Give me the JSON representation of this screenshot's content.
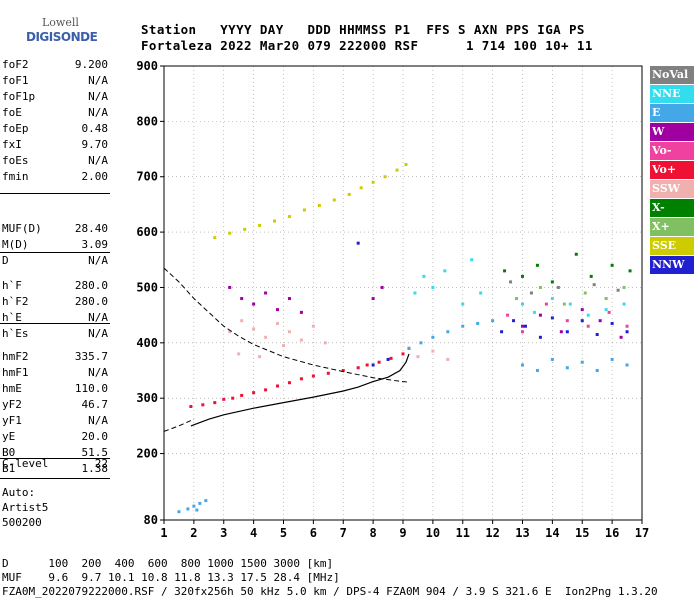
{
  "logo": {
    "top": "Lowell",
    "bottom": "DIGISONDE"
  },
  "header": {
    "line1": "Station   YYYY DAY   DDD HHMMSS P1  FFS S AXN PPS IGA PS",
    "line2": "Fortaleza 2022 Mar20 079 222000 RSF      1 714 100 10+ 11"
  },
  "params_group1": [
    {
      "label": "foF2",
      "value": "9.200"
    },
    {
      "label": "foF1",
      "value": "N/A"
    },
    {
      "label": "foF1p",
      "value": "N/A"
    },
    {
      "label": "foE",
      "value": "N/A"
    },
    {
      "label": "foEp",
      "value": "0.48"
    },
    {
      "label": "fxI",
      "value": "9.70"
    },
    {
      "label": "foEs",
      "value": "N/A"
    },
    {
      "label": "fmin",
      "value": "2.00"
    }
  ],
  "params_group2": [
    {
      "label": "MUF(D)",
      "value": "28.40"
    },
    {
      "label": "M(D)",
      "value": "3.09"
    },
    {
      "label": "D",
      "value": "N/A"
    }
  ],
  "params_group3": [
    {
      "label": "h`F",
      "value": "280.0"
    },
    {
      "label": "h`F2",
      "value": "280.0"
    },
    {
      "label": "h`E",
      "value": "N/A"
    },
    {
      "label": "h`Es",
      "value": "N/A"
    }
  ],
  "params_group4": [
    {
      "label": "hmF2",
      "value": "335.7"
    },
    {
      "label": "hmF1",
      "value": "N/A"
    },
    {
      "label": "hmE",
      "value": "110.0"
    },
    {
      "label": "yF2",
      "value": "46.7"
    },
    {
      "label": "yF1",
      "value": "N/A"
    },
    {
      "label": "yE",
      "value": "20.0"
    },
    {
      "label": "B0",
      "value": "51.5"
    },
    {
      "label": "B1",
      "value": "1.38"
    }
  ],
  "params_group5": [
    {
      "label": "C-level",
      "value": "22"
    }
  ],
  "auto": {
    "line1": "Auto:",
    "line2": "Artist5",
    "line3": "500200"
  },
  "legend": [
    {
      "label": "NoVal",
      "color": "#808080"
    },
    {
      "label": "NNE",
      "color": "#33ddee"
    },
    {
      "label": "E",
      "color": "#44a8e8"
    },
    {
      "label": "W",
      "color": "#a000a0"
    },
    {
      "label": "Vo-",
      "color": "#f040a0"
    },
    {
      "label": "Vo+",
      "color": "#ee1133"
    },
    {
      "label": "SSW",
      "color": "#f0b0b0"
    },
    {
      "label": "X-",
      "color": "#008000"
    },
    {
      "label": "X+",
      "color": "#80c060"
    },
    {
      "label": "SSE",
      "color": "#cccc00"
    },
    {
      "label": "NNW",
      "color": "#2020d0"
    }
  ],
  "footer": {
    "line1": "D      100  200  400  600  800 1000 1500 3000 [km]",
    "line2": "MUF    9.6  9.7 10.1 10.8 11.8 13.3 17.5 28.4 [MHz]",
    "line3": "FZA0M_2022079222000.RSF / 320fx256h 50 kHz 5.0 km / DPS-4 FZA0M 904 / 3.9 S 321.6 E  Ion2Png 1.3.20"
  },
  "chart_data": {
    "type": "scatter",
    "title": "",
    "xlabel": "",
    "ylabel": "",
    "xlim": [
      1,
      17
    ],
    "ylim": [
      80,
      900
    ],
    "x_ticks": [
      1,
      2,
      3,
      4,
      5,
      6,
      7,
      8,
      9,
      10,
      11,
      12,
      13,
      14,
      15,
      16,
      17
    ],
    "y_ticks": [
      80,
      200,
      300,
      400,
      500,
      600,
      700,
      800,
      900
    ],
    "grid": "dotted",
    "legend_placement": "right",
    "series": [
      {
        "name": "Vo+",
        "color": "#ee1133",
        "points": [
          [
            1.9,
            285
          ],
          [
            2.3,
            288
          ],
          [
            2.7,
            292
          ],
          [
            3.0,
            298
          ],
          [
            3.3,
            300
          ],
          [
            3.6,
            305
          ],
          [
            4.0,
            310
          ],
          [
            4.4,
            315
          ],
          [
            4.8,
            322
          ],
          [
            5.2,
            328
          ],
          [
            5.6,
            335
          ],
          [
            6.0,
            340
          ],
          [
            6.5,
            345
          ],
          [
            7.0,
            350
          ],
          [
            7.5,
            355
          ],
          [
            7.8,
            360
          ],
          [
            8.2,
            365
          ],
          [
            8.6,
            372
          ],
          [
            9.0,
            380
          ],
          [
            9.2,
            390
          ]
        ]
      },
      {
        "name": "SSW",
        "color": "#f0b0b0",
        "points": [
          [
            3.2,
            420
          ],
          [
            3.6,
            440
          ],
          [
            4.0,
            425
          ],
          [
            4.4,
            410
          ],
          [
            4.8,
            435
          ],
          [
            5.2,
            420
          ],
          [
            5.6,
            405
          ],
          [
            6.0,
            430
          ],
          [
            6.4,
            400
          ],
          [
            3.5,
            380
          ],
          [
            4.2,
            375
          ],
          [
            5.0,
            395
          ],
          [
            9.5,
            375
          ],
          [
            10.0,
            385
          ],
          [
            10.5,
            370
          ]
        ]
      },
      {
        "name": "W",
        "color": "#a000a0",
        "points": [
          [
            3.2,
            500
          ],
          [
            3.6,
            480
          ],
          [
            4.0,
            470
          ],
          [
            4.4,
            490
          ],
          [
            4.8,
            460
          ],
          [
            5.2,
            480
          ],
          [
            5.6,
            455
          ],
          [
            8.0,
            480
          ],
          [
            8.3,
            500
          ],
          [
            13.0,
            430
          ],
          [
            13.6,
            450
          ],
          [
            14.3,
            420
          ],
          [
            15.0,
            460
          ],
          [
            15.6,
            440
          ],
          [
            16.3,
            410
          ]
        ]
      },
      {
        "name": "SSE",
        "color": "#cccc00",
        "points": [
          [
            2.7,
            590
          ],
          [
            3.2,
            598
          ],
          [
            3.7,
            605
          ],
          [
            4.2,
            612
          ],
          [
            4.7,
            620
          ],
          [
            5.2,
            628
          ],
          [
            5.7,
            640
          ],
          [
            6.2,
            648
          ],
          [
            6.7,
            658
          ],
          [
            7.2,
            668
          ],
          [
            7.6,
            680
          ],
          [
            8.0,
            690
          ],
          [
            8.4,
            700
          ],
          [
            8.8,
            712
          ],
          [
            9.1,
            722
          ]
        ]
      },
      {
        "name": "E",
        "color": "#44a8e8",
        "points": [
          [
            9.2,
            390
          ],
          [
            9.6,
            400
          ],
          [
            10.0,
            410
          ],
          [
            10.5,
            420
          ],
          [
            11.0,
            430
          ],
          [
            11.5,
            435
          ],
          [
            12.0,
            440
          ],
          [
            13.0,
            360
          ],
          [
            13.5,
            350
          ],
          [
            14.0,
            370
          ],
          [
            14.5,
            355
          ],
          [
            15.0,
            365
          ],
          [
            15.5,
            350
          ],
          [
            16.0,
            370
          ],
          [
            16.5,
            360
          ]
        ]
      },
      {
        "name": "NNE",
        "color": "#33ddee",
        "points": [
          [
            9.4,
            490
          ],
          [
            9.7,
            520
          ],
          [
            10.0,
            500
          ],
          [
            10.4,
            530
          ],
          [
            11.0,
            470
          ],
          [
            11.3,
            550
          ],
          [
            11.6,
            490
          ],
          [
            13.0,
            470
          ],
          [
            13.4,
            455
          ],
          [
            14.0,
            480
          ],
          [
            14.6,
            470
          ],
          [
            15.2,
            450
          ],
          [
            15.8,
            460
          ],
          [
            16.4,
            470
          ]
        ]
      },
      {
        "name": "NNW",
        "color": "#2020d0",
        "points": [
          [
            12.3,
            420
          ],
          [
            12.7,
            440
          ],
          [
            13.1,
            430
          ],
          [
            13.6,
            410
          ],
          [
            14.0,
            445
          ],
          [
            14.5,
            420
          ],
          [
            15.0,
            440
          ],
          [
            15.5,
            415
          ],
          [
            16.0,
            435
          ],
          [
            16.5,
            420
          ],
          [
            7.5,
            580
          ],
          [
            8.0,
            360
          ],
          [
            8.5,
            370
          ]
        ]
      },
      {
        "name": "X-",
        "color": "#008000",
        "points": [
          [
            12.4,
            530
          ],
          [
            13.0,
            520
          ],
          [
            13.5,
            540
          ],
          [
            14.0,
            510
          ],
          [
            14.8,
            560
          ],
          [
            15.3,
            520
          ],
          [
            16.0,
            540
          ],
          [
            16.6,
            530
          ]
        ]
      },
      {
        "name": "Vo-",
        "color": "#f040a0",
        "points": [
          [
            12.5,
            450
          ],
          [
            13.0,
            420
          ],
          [
            13.8,
            470
          ],
          [
            14.5,
            440
          ],
          [
            15.2,
            430
          ],
          [
            15.9,
            455
          ],
          [
            16.5,
            430
          ]
        ]
      },
      {
        "name": "X+",
        "color": "#80c060",
        "points": [
          [
            12.8,
            480
          ],
          [
            13.6,
            500
          ],
          [
            14.4,
            470
          ],
          [
            15.1,
            490
          ],
          [
            15.8,
            480
          ],
          [
            16.4,
            500
          ]
        ]
      },
      {
        "name": "NoVal",
        "color": "#808080",
        "points": [
          [
            12.6,
            510
          ],
          [
            13.3,
            490
          ],
          [
            14.2,
            500
          ],
          [
            15.4,
            505
          ],
          [
            16.2,
            495
          ]
        ]
      }
    ],
    "low_cluster": [
      [
        1.5,
        95
      ],
      [
        1.8,
        100
      ],
      [
        2.0,
        105
      ],
      [
        2.2,
        110
      ],
      [
        2.4,
        115
      ],
      [
        2.1,
        98
      ]
    ],
    "curve_solid": [
      [
        1.9,
        250
      ],
      [
        2.5,
        262
      ],
      [
        3.0,
        270
      ],
      [
        4.0,
        282
      ],
      [
        5.0,
        292
      ],
      [
        6.0,
        302
      ],
      [
        7.0,
        313
      ],
      [
        7.5,
        320
      ],
      [
        8.0,
        330
      ],
      [
        8.5,
        338
      ],
      [
        8.9,
        350
      ],
      [
        9.1,
        365
      ],
      [
        9.2,
        380
      ]
    ],
    "curve_dashed": [
      [
        1.0,
        535
      ],
      [
        1.5,
        510
      ],
      [
        2.0,
        480
      ],
      [
        2.5,
        455
      ],
      [
        3.0,
        430
      ],
      [
        3.5,
        412
      ],
      [
        4.0,
        397
      ],
      [
        5.0,
        375
      ],
      [
        6.0,
        360
      ],
      [
        7.0,
        348
      ],
      [
        8.0,
        337
      ],
      [
        9.0,
        330
      ],
      [
        9.2,
        329
      ]
    ],
    "curve_dashed_low": [
      [
        1.0,
        240
      ],
      [
        1.5,
        250
      ],
      [
        2.0,
        262
      ]
    ]
  }
}
